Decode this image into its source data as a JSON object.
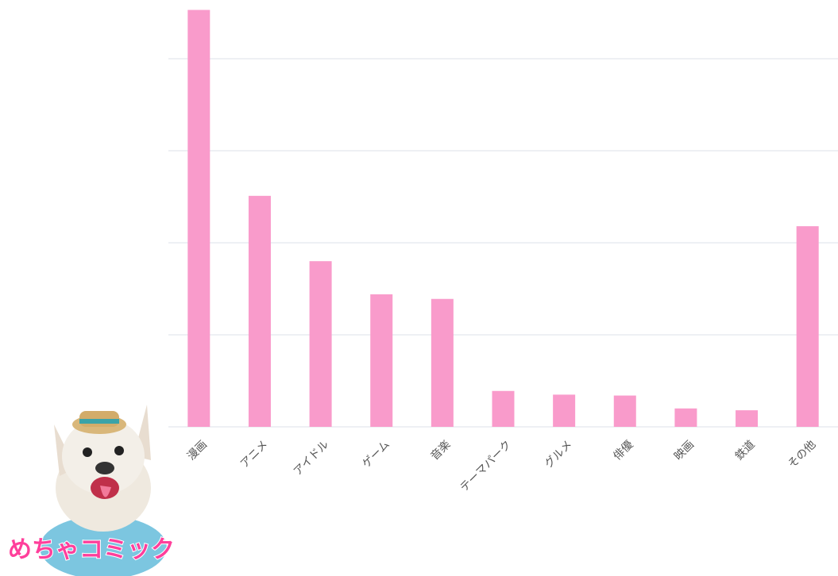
{
  "chart_data": {
    "type": "bar",
    "categories": [
      "漫画",
      "アニメ",
      "アイドル",
      "ゲーム",
      "音楽",
      "テーマパーク",
      "グルメ",
      "俳優",
      "映画",
      "鉄道",
      "その他"
    ],
    "values": [
      4.53,
      2.51,
      1.8,
      1.44,
      1.39,
      0.39,
      0.35,
      0.34,
      0.2,
      0.18,
      2.18
    ],
    "color": "#f99bcb",
    "ylim": [
      0,
      4.6
    ],
    "yticks": [
      0,
      1,
      2,
      3,
      4
    ],
    "grid": true
  },
  "logo": {
    "text": "めちゃコミック"
  }
}
